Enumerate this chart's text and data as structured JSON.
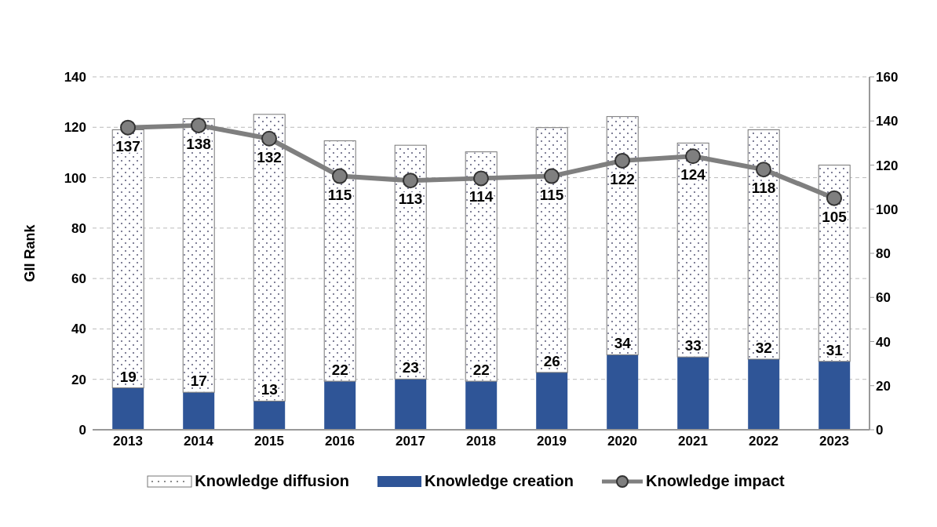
{
  "chart_data": {
    "type": "bar",
    "stacked": true,
    "categories": [
      "2013",
      "2014",
      "2015",
      "2016",
      "2017",
      "2018",
      "2019",
      "2020",
      "2021",
      "2022",
      "2023"
    ],
    "ylabel": "GII Rank",
    "ylim": [
      0,
      140
    ],
    "yticks": [
      0,
      20,
      40,
      60,
      80,
      100,
      120,
      140
    ],
    "y2lim": [
      0,
      160
    ],
    "y2ticks": [
      0,
      20,
      40,
      60,
      80,
      100,
      120,
      140,
      160
    ],
    "grid": "y",
    "legend": "bottom",
    "marker": "circle",
    "line_style": "solid",
    "series": [
      {
        "name": "Knowledge creation",
        "axis": "y2",
        "color": "#2f5597",
        "values": [
          19,
          17,
          13,
          22,
          23,
          22,
          26,
          34,
          33,
          32,
          31
        ],
        "value_labels": [
          "19",
          "17",
          "13",
          "22",
          "23",
          "22",
          "26",
          "34",
          "33",
          "32",
          "31"
        ]
      },
      {
        "name": "Knowledge diffusion",
        "axis": "y2",
        "color": "#ffffff",
        "values": [
          117,
          124,
          130,
          109,
          106,
          104,
          111,
          108,
          97,
          104,
          89
        ]
      },
      {
        "name": "Knowledge impact",
        "type": "line",
        "axis": "y2",
        "color": "#7f7f7f",
        "values": [
          137,
          138,
          132,
          115,
          113,
          114,
          115,
          122,
          124,
          118,
          105
        ],
        "value_labels": [
          "137",
          "138",
          "132",
          "115",
          "113",
          "114",
          "115",
          "122",
          "124",
          "118",
          "105"
        ]
      }
    ]
  }
}
